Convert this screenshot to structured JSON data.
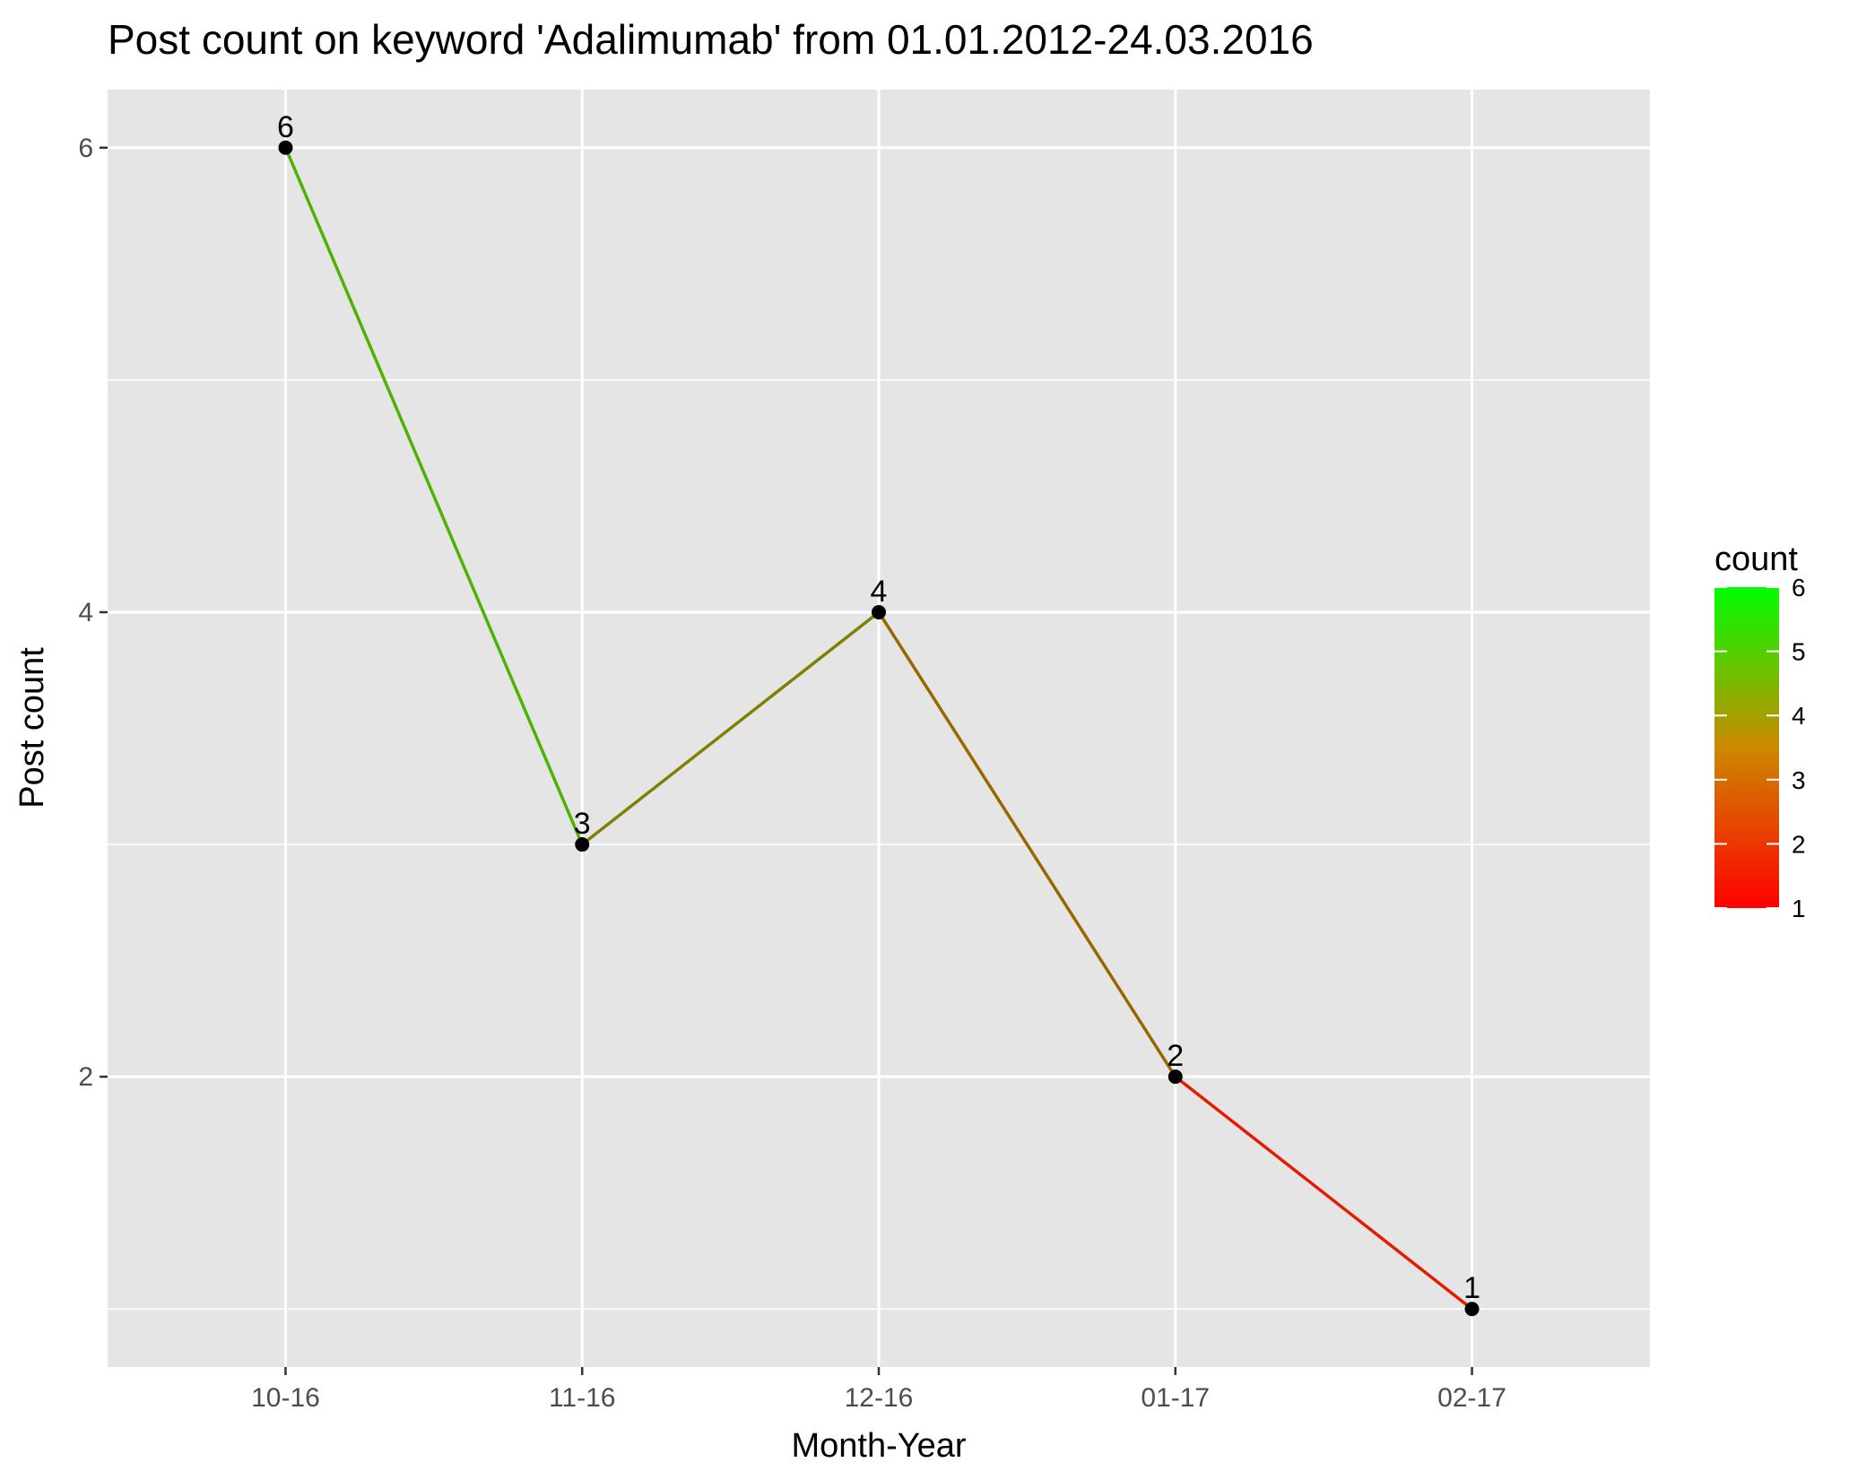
{
  "chart_data": {
    "type": "line",
    "title": "Post count on keyword 'Adalimumab' from 01.01.2012-24.03.2016",
    "xlabel": "Month-Year",
    "ylabel": "Post count",
    "categories": [
      "10-16",
      "11-16",
      "12-16",
      "01-17",
      "02-17"
    ],
    "values": [
      6,
      3,
      4,
      2,
      1
    ],
    "data_labels": [
      "6",
      "3",
      "4",
      "2",
      "1"
    ],
    "ylim": [
      0.75,
      6.25
    ],
    "yticks": [
      2,
      4,
      6
    ],
    "ytick_labels": [
      "2",
      "4",
      "6"
    ],
    "grid": true,
    "legend": {
      "title": "count",
      "position": "right",
      "range": [
        1,
        6
      ],
      "ticks": [
        1,
        2,
        3,
        4,
        5,
        6
      ],
      "tick_labels": [
        "1",
        "2",
        "3",
        "4",
        "5",
        "6"
      ],
      "low_color": "#ff0000",
      "high_color": "#00ff00"
    },
    "colors": {
      "panel_bg": "#e5e5e5",
      "grid": "#ffffff",
      "point": "#000000"
    }
  }
}
